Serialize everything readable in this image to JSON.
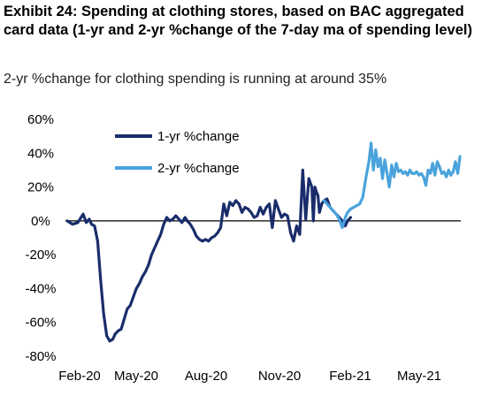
{
  "chart_data": {
    "type": "line",
    "title": "Exhibit 24: Spending at clothing stores, based on BAC aggregated card data (1-yr and 2-yr %change of the 7-day ma of spending level)",
    "subtitle": "2-yr %change for clothing spending is running at around 35%",
    "x_tick_labels": [
      "Feb-20",
      "May-20",
      "Aug-20",
      "Nov-20",
      "Feb-21",
      "May-21"
    ],
    "y_tick_labels": [
      "60%",
      "40%",
      "20%",
      "0%",
      "-20%",
      "-40%",
      "-60%",
      "-80%"
    ],
    "y_ticks": [
      60,
      40,
      20,
      0,
      -20,
      -40,
      -60,
      -80
    ],
    "ylim": [
      -80,
      60
    ],
    "x_range": [
      "2020-02-01",
      "2021-07-03"
    ],
    "legend": "top-left",
    "grid": false,
    "series": [
      {
        "name": "1-yr %change",
        "color": "#1a2d6b",
        "x": [
          "2020-02-01",
          "2020-02-08",
          "2020-02-15",
          "2020-02-22",
          "2020-02-26",
          "2020-03-01",
          "2020-03-04",
          "2020-03-08",
          "2020-03-12",
          "2020-03-16",
          "2020-03-20",
          "2020-03-24",
          "2020-03-28",
          "2020-04-01",
          "2020-04-04",
          "2020-04-08",
          "2020-04-12",
          "2020-04-16",
          "2020-04-20",
          "2020-04-24",
          "2020-04-28",
          "2020-05-02",
          "2020-05-06",
          "2020-05-10",
          "2020-05-14",
          "2020-05-18",
          "2020-05-22",
          "2020-05-26",
          "2020-05-30",
          "2020-06-03",
          "2020-06-07",
          "2020-06-11",
          "2020-06-15",
          "2020-06-19",
          "2020-06-23",
          "2020-06-27",
          "2020-07-01",
          "2020-07-05",
          "2020-07-08",
          "2020-07-12",
          "2020-07-16",
          "2020-07-20",
          "2020-07-24",
          "2020-07-28",
          "2020-08-01",
          "2020-08-05",
          "2020-08-09",
          "2020-08-13",
          "2020-08-17",
          "2020-08-21",
          "2020-08-25",
          "2020-08-29",
          "2020-09-02",
          "2020-09-06",
          "2020-09-10",
          "2020-09-14",
          "2020-09-18",
          "2020-09-22",
          "2020-09-26",
          "2020-09-30",
          "2020-10-04",
          "2020-10-08",
          "2020-10-12",
          "2020-10-16",
          "2020-10-20",
          "2020-10-24",
          "2020-10-28",
          "2020-11-01",
          "2020-11-05",
          "2020-11-09",
          "2020-11-13",
          "2020-11-17",
          "2020-11-21",
          "2020-11-25",
          "2020-11-29",
          "2020-12-03",
          "2020-12-07",
          "2020-12-11",
          "2020-12-15",
          "2020-12-19",
          "2020-12-21",
          "2020-12-23",
          "2020-12-25",
          "2020-12-27",
          "2020-12-29",
          "2021-01-01",
          "2021-01-04",
          "2021-01-08",
          "2021-01-12",
          "2021-01-16",
          "2021-01-20",
          "2021-01-24",
          "2021-01-28",
          "2021-02-01",
          "2021-02-04",
          "2021-02-08"
        ],
        "y": [
          0,
          -2,
          -1,
          4,
          -1,
          1,
          -2,
          -3,
          -12,
          -35,
          -55,
          -68,
          -71,
          -70,
          -67,
          -65,
          -64,
          -58,
          -52,
          -50,
          -45,
          -40,
          -37,
          -33,
          -30,
          -26,
          -20,
          -16,
          -12,
          -8,
          -2,
          2,
          0,
          1,
          3,
          1,
          -1,
          2,
          0,
          -2,
          -5,
          -9,
          -11,
          -12,
          -11,
          -12,
          -10,
          -9,
          -7,
          -4,
          10,
          3,
          11,
          9,
          12,
          10,
          5,
          8,
          7,
          5,
          2,
          3,
          8,
          4,
          8,
          10,
          -4,
          12,
          7,
          2,
          4,
          3,
          -7,
          -12,
          -3,
          -8,
          30,
          1,
          25,
          20,
          0,
          20,
          17,
          15,
          5,
          10,
          12,
          13,
          8,
          6,
          4,
          2,
          0,
          -3,
          0,
          2
        ]
      },
      {
        "name": "2-yr %change",
        "color": "#4aa3dc",
        "x": [
          "2021-01-04",
          "2021-01-08",
          "2021-01-12",
          "2021-01-16",
          "2021-01-20",
          "2021-01-24",
          "2021-01-28",
          "2021-02-01",
          "2021-02-04",
          "2021-02-08",
          "2021-02-12",
          "2021-02-16",
          "2021-02-20",
          "2021-02-24",
          "2021-02-28",
          "2021-03-04",
          "2021-03-07",
          "2021-03-10",
          "2021-03-13",
          "2021-03-16",
          "2021-03-19",
          "2021-03-22",
          "2021-03-25",
          "2021-03-28",
          "2021-03-31",
          "2021-04-03",
          "2021-04-06",
          "2021-04-09",
          "2021-04-12",
          "2021-04-15",
          "2021-04-18",
          "2021-04-21",
          "2021-04-24",
          "2021-04-27",
          "2021-04-30",
          "2021-05-03",
          "2021-05-06",
          "2021-05-09",
          "2021-05-12",
          "2021-05-15",
          "2021-05-18",
          "2021-05-21",
          "2021-05-24",
          "2021-05-27",
          "2021-05-30",
          "2021-06-02",
          "2021-06-05",
          "2021-06-08",
          "2021-06-11",
          "2021-06-14",
          "2021-06-17",
          "2021-06-20",
          "2021-06-23",
          "2021-06-26",
          "2021-06-29",
          "2021-07-02"
        ],
        "y": [
          12,
          10,
          8,
          6,
          4,
          1,
          -4,
          2,
          5,
          7,
          8,
          9,
          10,
          14,
          25,
          35,
          46,
          30,
          42,
          32,
          37,
          25,
          36,
          28,
          20,
          33,
          26,
          34,
          29,
          30,
          28,
          29,
          27,
          30,
          28,
          28,
          29,
          27,
          28,
          26,
          21,
          30,
          28,
          34,
          27,
          35,
          32,
          28,
          29,
          26,
          30,
          27,
          29,
          35,
          28,
          38
        ]
      }
    ]
  }
}
